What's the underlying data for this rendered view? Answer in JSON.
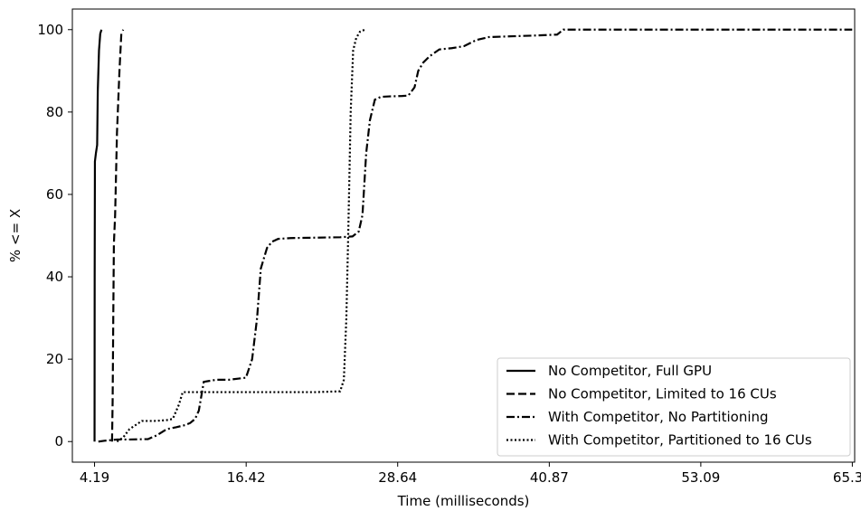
{
  "chart_data": {
    "type": "line",
    "title": "",
    "xlabel": "Time (milliseconds)",
    "ylabel": "% <= X",
    "xlim": [
      2.4,
      65.5
    ],
    "ylim": [
      -5,
      105
    ],
    "xticks": [
      4.19,
      16.42,
      28.64,
      40.87,
      53.09,
      65.31
    ],
    "xtick_labels": [
      "4.19",
      "16.42",
      "28.64",
      "40.87",
      "53.09",
      "65.31"
    ],
    "yticks": [
      0,
      20,
      40,
      60,
      80,
      100
    ],
    "ytick_labels": [
      "0",
      "20",
      "40",
      "60",
      "80",
      "100"
    ],
    "grid": false,
    "legend_position": "lower-right",
    "series": [
      {
        "name": "No Competitor, Full GPU",
        "style": "solid",
        "x": [
          4.19,
          4.2,
          4.22,
          4.3,
          4.4,
          4.45,
          4.55,
          4.65,
          4.75
        ],
        "y": [
          0,
          40,
          68,
          70,
          72,
          85,
          95,
          99,
          100
        ]
      },
      {
        "name": "No Competitor, Limited to 16 CUs",
        "style": "dashed",
        "x": [
          5.6,
          5.65,
          5.7,
          5.75,
          5.85,
          6.0,
          6.2,
          6.35,
          6.5
        ],
        "y": [
          0,
          10,
          30,
          48,
          55,
          75,
          90,
          99,
          100
        ]
      },
      {
        "name": "With Competitor, No Partitioning",
        "style": "dashdot",
        "x": [
          4.5,
          5.0,
          6.0,
          7.0,
          8.5,
          9.2,
          10.0,
          10.8,
          11.5,
          11.9,
          12.3,
          12.6,
          13.0,
          14.0,
          15.0,
          16.4,
          16.9,
          17.3,
          17.6,
          17.8,
          18.1,
          18.5,
          19.0,
          20.0,
          22.0,
          24.0,
          25.0,
          25.5,
          25.8,
          26.1,
          26.4,
          26.8,
          27.3,
          28.0,
          29.0,
          29.5,
          30.0,
          30.3,
          30.7,
          31.2,
          32.0,
          33.0,
          34.0,
          35.0,
          36.0,
          38.0,
          40.0,
          41.5,
          42.0,
          45.0,
          50.0,
          55.0,
          60.0,
          65.3
        ],
        "y": [
          0,
          0.2,
          0.5,
          0.5,
          0.6,
          1.5,
          3,
          3.5,
          4,
          4.5,
          5.5,
          7.5,
          14.5,
          15,
          15,
          15.5,
          20,
          30,
          42,
          44,
          47,
          48.5,
          49.2,
          49.4,
          49.5,
          49.6,
          49.8,
          51,
          55,
          70,
          78,
          83,
          83.7,
          83.8,
          83.9,
          84,
          86,
          90,
          92,
          93.5,
          95.2,
          95.5,
          96,
          97.5,
          98.2,
          98.4,
          98.6,
          98.8,
          100,
          100,
          100,
          100,
          100,
          100
        ]
      },
      {
        "name": "With Competitor, Partitioned to 16 CUs",
        "style": "dotted",
        "x": [
          6.0,
          6.5,
          7.0,
          7.5,
          8.0,
          9.0,
          10.0,
          10.5,
          11.0,
          11.3,
          11.6,
          12.0,
          14.0,
          18.0,
          22.0,
          24.0,
          24.3,
          24.5,
          24.65,
          24.85,
          25.05,
          25.3,
          25.6,
          26.0
        ],
        "y": [
          0,
          1,
          3,
          4,
          5,
          5,
          5.2,
          5.5,
          9,
          12,
          12,
          12,
          12,
          12,
          12,
          12.2,
          15,
          30,
          50,
          80,
          95,
          98,
          99.5,
          100
        ]
      }
    ]
  }
}
